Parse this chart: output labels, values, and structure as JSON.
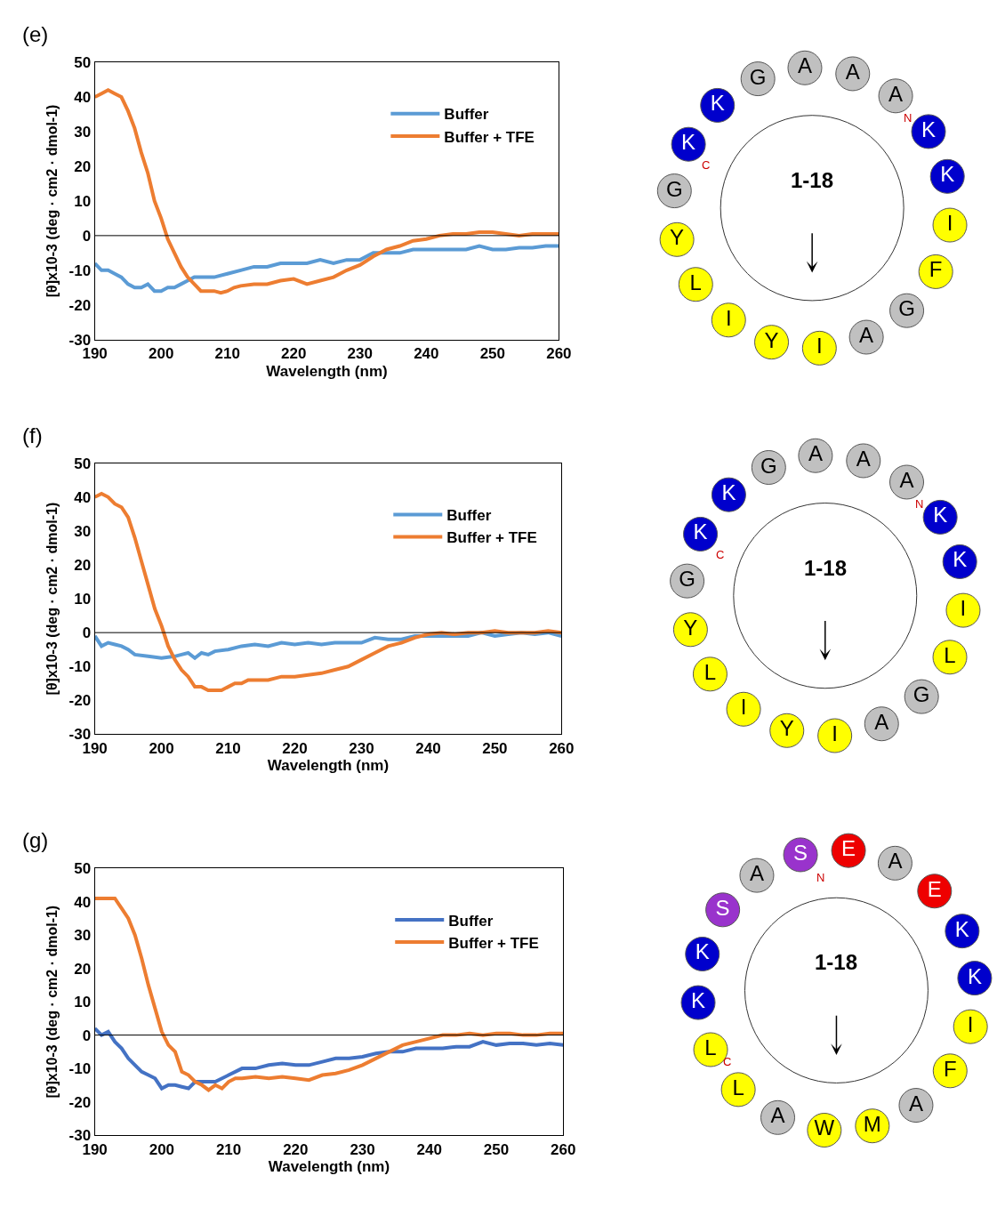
{
  "chart_data": [
    {
      "type": "line",
      "title": "(e)",
      "xlabel": "Wavelength (nm)",
      "ylabel": "[θ]x10-3 (deg · cm2 · dmol-1)",
      "xlim": [
        190,
        260
      ],
      "xticks": [
        190,
        200,
        210,
        220,
        230,
        240,
        250,
        260
      ],
      "ylim": [
        -30,
        50
      ],
      "yticks": [
        -30,
        -20,
        -10,
        0,
        10,
        20,
        30,
        40,
        50
      ],
      "legend": "top right",
      "ref_lines": [
        {
          "axis": "y",
          "value": 0,
          "color": "#000000"
        }
      ],
      "series": [
        {
          "name": "Buffer",
          "color": "#5b9bd5",
          "x": [
            190,
            191,
            192,
            193,
            194,
            195,
            196,
            197,
            198,
            199,
            200,
            201,
            202,
            203,
            204,
            205,
            206,
            208,
            210,
            212,
            214,
            216,
            218,
            220,
            222,
            224,
            226,
            228,
            230,
            232,
            234,
            236,
            238,
            240,
            242,
            244,
            246,
            248,
            250,
            252,
            254,
            256,
            258,
            260
          ],
          "values": [
            -8,
            -10,
            -10,
            -11,
            -12,
            -14,
            -15,
            -15,
            -14,
            -16,
            -16,
            -15,
            -15,
            -14,
            -13,
            -12,
            -12,
            -12,
            -11,
            -10,
            -9,
            -9,
            -8,
            -8,
            -8,
            -7,
            -8,
            -7,
            -7,
            -5,
            -5,
            -5,
            -4,
            -4,
            -4,
            -4,
            -4,
            -3,
            -4,
            -4,
            -3.5,
            -3.5,
            -3,
            -3
          ]
        },
        {
          "name": "Buffer + TFE",
          "color": "#ed7d31",
          "x": [
            190,
            191,
            192,
            193,
            194,
            195,
            196,
            197,
            198,
            199,
            200,
            201,
            202,
            203,
            204,
            205,
            206,
            207,
            208,
            209,
            210,
            211,
            212,
            214,
            216,
            218,
            220,
            222,
            224,
            226,
            228,
            230,
            232,
            234,
            236,
            238,
            240,
            242,
            244,
            246,
            248,
            250,
            252,
            254,
            256,
            258,
            260
          ],
          "values": [
            40,
            41,
            42,
            41,
            40,
            36,
            31,
            24,
            18,
            10,
            5,
            -1,
            -5,
            -9,
            -12,
            -14,
            -16,
            -16,
            -16,
            -16.5,
            -16,
            -15,
            -14.5,
            -14,
            -14,
            -13,
            -12.5,
            -14,
            -13,
            -12,
            -10,
            -8.5,
            -6,
            -4,
            -3,
            -1.5,
            -1,
            0,
            0.5,
            0.5,
            1,
            1,
            0.5,
            0,
            0.5,
            0.5,
            0.5
          ]
        }
      ]
    },
    {
      "type": "other",
      "title": "1-18",
      "categories": [
        "A",
        "A",
        "A",
        "K",
        "K",
        "I",
        "F",
        "G",
        "A",
        "I",
        "Y",
        "I",
        "L",
        "Y",
        "G",
        "K",
        "K",
        "G"
      ],
      "colors": [
        "#c0c0c0",
        "#c0c0c0",
        "#c0c0c0",
        "#0000cc",
        "#0000cc",
        "#ffff00",
        "#ffff00",
        "#c0c0c0",
        "#c0c0c0",
        "#ffff00",
        "#ffff00",
        "#ffff00",
        "#ffff00",
        "#ffff00",
        "#c0c0c0",
        "#0000cc",
        "#0000cc",
        "#c0c0c0"
      ],
      "annotations": [
        "N",
        "C"
      ]
    },
    {
      "type": "line",
      "title": "(f)",
      "xlabel": "Wavelength (nm)",
      "ylabel": "[θ]x10-3 (deg · cm2 · dmol-1)",
      "xlim": [
        190,
        260
      ],
      "xticks": [
        190,
        200,
        210,
        220,
        230,
        240,
        250,
        260
      ],
      "ylim": [
        -30,
        50
      ],
      "yticks": [
        -30,
        -20,
        -10,
        0,
        10,
        20,
        30,
        40,
        50
      ],
      "legend": "top right",
      "ref_lines": [
        {
          "axis": "y",
          "value": 0,
          "color": "#000000"
        }
      ],
      "series": [
        {
          "name": "Buffer",
          "color": "#5b9bd5",
          "x": [
            190,
            191,
            192,
            193,
            194,
            195,
            196,
            198,
            200,
            202,
            203,
            204,
            205,
            206,
            207,
            208,
            210,
            212,
            214,
            216,
            218,
            220,
            222,
            224,
            226,
            228,
            230,
            232,
            234,
            236,
            238,
            240,
            242,
            244,
            246,
            248,
            250,
            252,
            254,
            256,
            258,
            260
          ],
          "values": [
            -1,
            -4,
            -3,
            -3.5,
            -4,
            -5,
            -6.5,
            -7,
            -7.5,
            -7,
            -6.5,
            -6,
            -7.5,
            -6,
            -6.5,
            -5.5,
            -5,
            -4,
            -3.5,
            -4,
            -3,
            -3.5,
            -3,
            -3.5,
            -3,
            -3,
            -3,
            -1.5,
            -2,
            -2,
            -1,
            -1,
            -1,
            -1,
            -1,
            0,
            -1,
            -0.5,
            0,
            -0.5,
            0,
            -1
          ]
        },
        {
          "name": "Buffer + TFE",
          "color": "#ed7d31",
          "x": [
            190,
            191,
            192,
            193,
            194,
            195,
            196,
            197,
            198,
            199,
            200,
            201,
            202,
            203,
            204,
            205,
            206,
            207,
            208,
            209,
            210,
            211,
            212,
            213,
            214,
            216,
            218,
            220,
            222,
            224,
            226,
            228,
            230,
            232,
            234,
            236,
            238,
            240,
            242,
            244,
            246,
            248,
            250,
            252,
            254,
            256,
            258,
            260
          ],
          "values": [
            40,
            41,
            40,
            38,
            37,
            34,
            28,
            21,
            14,
            7,
            2,
            -4,
            -8,
            -11,
            -13,
            -16,
            -16,
            -17,
            -17,
            -17,
            -16,
            -15,
            -15,
            -14,
            -14,
            -14,
            -13,
            -13,
            -12.5,
            -12,
            -11,
            -10,
            -8,
            -6,
            -4,
            -3,
            -1.5,
            -0.5,
            0,
            -0.5,
            0,
            0,
            0.5,
            0,
            0,
            0,
            0.5,
            0
          ]
        }
      ]
    },
    {
      "type": "other",
      "title": "1-18",
      "categories": [
        "A",
        "A",
        "A",
        "K",
        "K",
        "I",
        "L",
        "G",
        "A",
        "I",
        "Y",
        "I",
        "L",
        "Y",
        "G",
        "K",
        "K",
        "G"
      ],
      "colors": [
        "#c0c0c0",
        "#c0c0c0",
        "#c0c0c0",
        "#0000cc",
        "#0000cc",
        "#ffff00",
        "#ffff00",
        "#c0c0c0",
        "#c0c0c0",
        "#ffff00",
        "#ffff00",
        "#ffff00",
        "#ffff00",
        "#ffff00",
        "#c0c0c0",
        "#0000cc",
        "#0000cc",
        "#c0c0c0"
      ],
      "annotations": [
        "N",
        "C"
      ]
    },
    {
      "type": "line",
      "title": "(g)",
      "xlabel": "Wavelength (nm)",
      "ylabel": "[θ]x10-3 (deg · cm2 · dmol-1)",
      "xlim": [
        190,
        260
      ],
      "xticks": [
        190,
        200,
        210,
        220,
        230,
        240,
        250,
        260
      ],
      "ylim": [
        -30,
        50
      ],
      "yticks": [
        -30,
        -20,
        -10,
        0,
        10,
        20,
        30,
        40,
        50
      ],
      "legend": "top right",
      "ref_lines": [
        {
          "axis": "y",
          "value": 0,
          "color": "#000000"
        }
      ],
      "series": [
        {
          "name": "Buffer",
          "color": "#4472c4",
          "x": [
            190,
            191,
            192,
            193,
            194,
            195,
            196,
            197,
            198,
            199,
            200,
            201,
            202,
            203,
            204,
            205,
            206,
            208,
            210,
            212,
            214,
            216,
            218,
            220,
            222,
            224,
            226,
            228,
            230,
            232,
            234,
            236,
            238,
            240,
            242,
            244,
            246,
            248,
            250,
            252,
            254,
            256,
            258,
            260
          ],
          "values": [
            2,
            0,
            1,
            -2,
            -4,
            -7,
            -9,
            -11,
            -12,
            -13,
            -16,
            -15,
            -15,
            -15.5,
            -16,
            -14,
            -14,
            -14,
            -12,
            -10,
            -10,
            -9,
            -8.5,
            -9,
            -9,
            -8,
            -7,
            -7,
            -6.5,
            -5.5,
            -5,
            -5,
            -4,
            -4,
            -4,
            -3.5,
            -3.5,
            -2,
            -3,
            -2.5,
            -2.5,
            -3,
            -2.5,
            -3
          ]
        },
        {
          "name": "Buffer + TFE",
          "color": "#ed7d31",
          "x": [
            190,
            191,
            192,
            193,
            194,
            195,
            196,
            197,
            198,
            199,
            200,
            201,
            202,
            203,
            204,
            205,
            206,
            207,
            208,
            209,
            210,
            211,
            212,
            214,
            216,
            218,
            220,
            222,
            224,
            226,
            228,
            230,
            232,
            234,
            236,
            238,
            240,
            242,
            244,
            246,
            248,
            250,
            252,
            254,
            256,
            258,
            260
          ],
          "values": [
            41,
            41,
            41,
            41,
            38,
            35,
            30,
            23,
            15,
            8,
            1,
            -3,
            -5,
            -11,
            -12,
            -14,
            -15,
            -16.5,
            -15,
            -16,
            -14,
            -13,
            -13,
            -12.5,
            -13,
            -12.5,
            -13,
            -13.5,
            -12,
            -11.5,
            -10.5,
            -9,
            -7,
            -5,
            -3,
            -2,
            -1,
            0,
            0,
            0.5,
            0,
            0.5,
            0.5,
            0,
            0,
            0.5,
            0.5
          ]
        }
      ]
    },
    {
      "type": "other",
      "title": "1-18",
      "categories": [
        "S",
        "E",
        "A",
        "E",
        "K",
        "K",
        "I",
        "F",
        "A",
        "M",
        "W",
        "A",
        "L",
        "L",
        "K",
        "K",
        "S",
        "A"
      ],
      "colors": [
        "#9933cc",
        "#ee0000",
        "#c0c0c0",
        "#ee0000",
        "#0000cc",
        "#0000cc",
        "#ffff00",
        "#ffff00",
        "#c0c0c0",
        "#ffff00",
        "#ffff00",
        "#c0c0c0",
        "#ffff00",
        "#ffff00",
        "#0000cc",
        "#0000cc",
        "#9933cc",
        "#c0c0c0"
      ],
      "annotations": [
        "N",
        "C"
      ]
    }
  ]
}
